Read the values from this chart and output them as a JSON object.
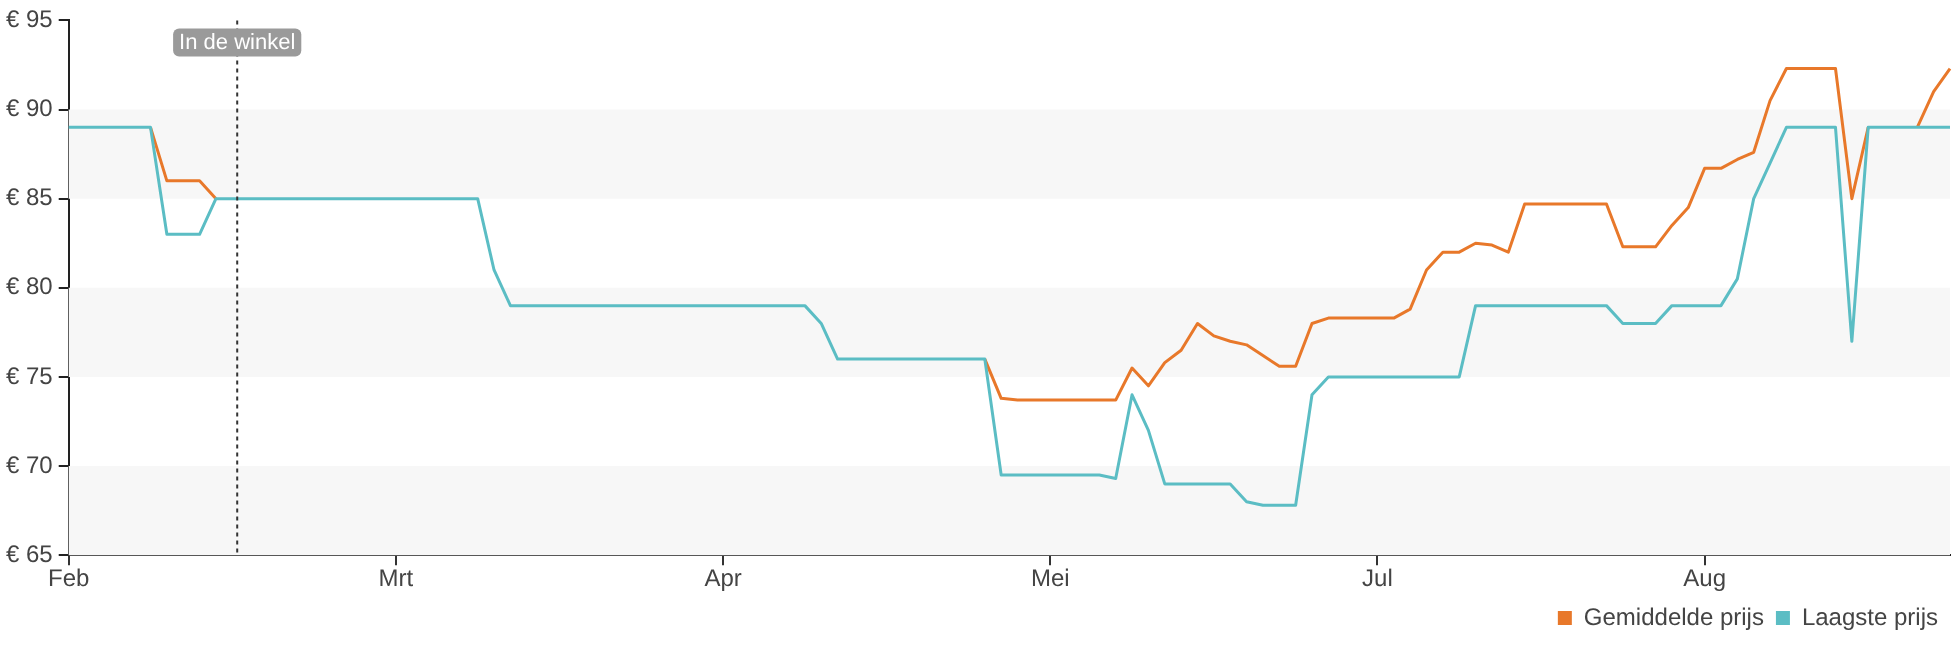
{
  "chart_data": {
    "type": "line",
    "categories": [
      "Feb",
      null,
      null,
      null,
      null,
      null,
      null,
      null,
      null,
      null,
      null,
      null,
      null,
      null,
      null,
      null,
      null,
      null,
      null,
      null,
      "Mrt",
      null,
      null,
      null,
      null,
      null,
      null,
      null,
      null,
      null,
      null,
      null,
      null,
      null,
      null,
      null,
      null,
      null,
      null,
      null,
      "Apr",
      null,
      null,
      null,
      null,
      null,
      null,
      null,
      null,
      null,
      null,
      null,
      null,
      null,
      null,
      null,
      null,
      null,
      null,
      null,
      "Mei",
      null,
      null,
      null,
      null,
      null,
      null,
      null,
      null,
      null,
      null,
      null,
      null,
      null,
      null,
      null,
      null,
      null,
      null,
      null,
      "Jul",
      null,
      null,
      null,
      null,
      null,
      null,
      null,
      null,
      null,
      null,
      null,
      null,
      null,
      null,
      null,
      null,
      null,
      null,
      null,
      "Aug",
      null,
      null,
      null,
      null,
      null,
      null,
      null,
      null,
      null,
      null,
      null,
      null,
      null,
      null,
      null
    ],
    "ylim": [
      65,
      95
    ],
    "yticks": [
      {
        "value": 65,
        "label": "€ 65"
      },
      {
        "value": 70,
        "label": "€ 70"
      },
      {
        "value": 75,
        "label": "€ 75"
      },
      {
        "value": 80,
        "label": "€ 80"
      },
      {
        "value": 85,
        "label": "€ 85"
      },
      {
        "value": 90,
        "label": "€ 90"
      },
      {
        "value": 95,
        "label": "€ 95"
      }
    ],
    "legend": "bottom right",
    "marker": "none",
    "line_style": "solid",
    "annotations": [
      "In de winkel"
    ],
    "series": [
      {
        "name": "Gemiddelde prijs",
        "color": "#e8782a",
        "values": [
          null,
          null,
          null,
          null,
          null,
          89,
          86,
          86,
          86,
          85,
          null,
          null,
          null,
          null,
          null,
          null,
          null,
          null,
          null,
          null,
          null,
          null,
          null,
          null,
          null,
          null,
          null,
          null,
          null,
          null,
          null,
          null,
          null,
          null,
          null,
          null,
          null,
          null,
          null,
          null,
          null,
          null,
          null,
          null,
          null,
          null,
          null,
          null,
          null,
          null,
          null,
          null,
          null,
          null,
          null,
          null,
          76,
          73.8,
          73.7,
          73.7,
          73.7,
          73.7,
          73.7,
          73.7,
          73.7,
          75.5,
          74.5,
          75.8,
          76.5,
          78,
          77.3,
          77,
          76.8,
          76.2,
          75.6,
          75.6,
          78,
          78.3,
          78.3,
          78.3,
          78.3,
          78.3,
          78.8,
          81,
          82,
          82,
          82.5,
          82.4,
          82,
          84.7,
          84.7,
          84.7,
          84.7,
          84.7,
          84.7,
          82.3,
          82.3,
          82.3,
          83.5,
          84.5,
          86.7,
          86.7,
          87.2,
          87.6,
          90.5,
          92.3,
          92.3,
          92.3,
          92.3,
          85,
          89,
          null,
          null,
          89,
          91,
          92.3
        ]
      },
      {
        "name": "Laagste prijs",
        "color": "#5bbdc4",
        "values": [
          89,
          89,
          89,
          89,
          89,
          89,
          83,
          83,
          83,
          85,
          85,
          85,
          85,
          85,
          85,
          85,
          85,
          85,
          85,
          85,
          85,
          85,
          85,
          85,
          85,
          85,
          81,
          79,
          79,
          79,
          79,
          79,
          79,
          79,
          79,
          79,
          79,
          79,
          79,
          79,
          79,
          79,
          79,
          79,
          79,
          79,
          78,
          76,
          76,
          76,
          76,
          76,
          76,
          76,
          76,
          76,
          76,
          69.5,
          69.5,
          69.5,
          69.5,
          69.5,
          69.5,
          69.5,
          69.3,
          74,
          72,
          69,
          69,
          69,
          69,
          69,
          68,
          67.8,
          67.8,
          67.8,
          74,
          75,
          75,
          75,
          75,
          75,
          75,
          75,
          75,
          75,
          79,
          79,
          79,
          79,
          79,
          79,
          79,
          79,
          79,
          78,
          78,
          78,
          79,
          79,
          79,
          79,
          80.5,
          85,
          87,
          89,
          89,
          89,
          89,
          77,
          89,
          89,
          89,
          89,
          89,
          89
        ]
      }
    ]
  }
}
